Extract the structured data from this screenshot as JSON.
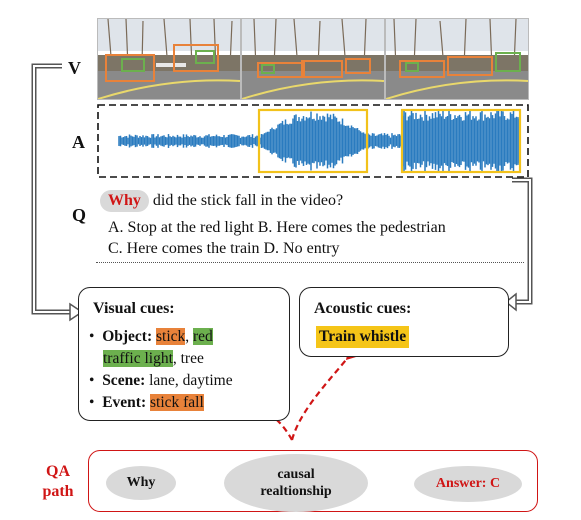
{
  "labels": {
    "v": "V",
    "a": "A",
    "q": "Q"
  },
  "question": {
    "why": "Why",
    "text": " did the stick fall in the video?",
    "options_line1": "A.  Stop at the red light    B. Here comes the pedestrian",
    "options_line2": "C.  Here comes the train    D. No entry"
  },
  "visual_cues": {
    "title": "Visual cues:",
    "object_label": "Object:",
    "object_stick": "stick",
    "comma": ",",
    "object_red": "red",
    "object_traffic_light": "traffic light",
    "object_tree": ", tree",
    "scene_label": "Scene:",
    "scene_value": " lane, daytime",
    "event_label": "Event:",
    "event_value": "stick fall"
  },
  "acoustic_cues": {
    "title": "Acoustic cues:",
    "value": "Train whistle"
  },
  "qa_path": {
    "label_line1": "QA",
    "label_line2": "path",
    "why": "Why",
    "causal_line1": "causal",
    "causal_line2": "realtionship",
    "answer": "Answer: C"
  },
  "colors": {
    "red": "#d01515",
    "orange": "#e8823a",
    "green": "#6cb04e",
    "yellow": "#f5c518",
    "waveform": "#2a7bbf"
  }
}
